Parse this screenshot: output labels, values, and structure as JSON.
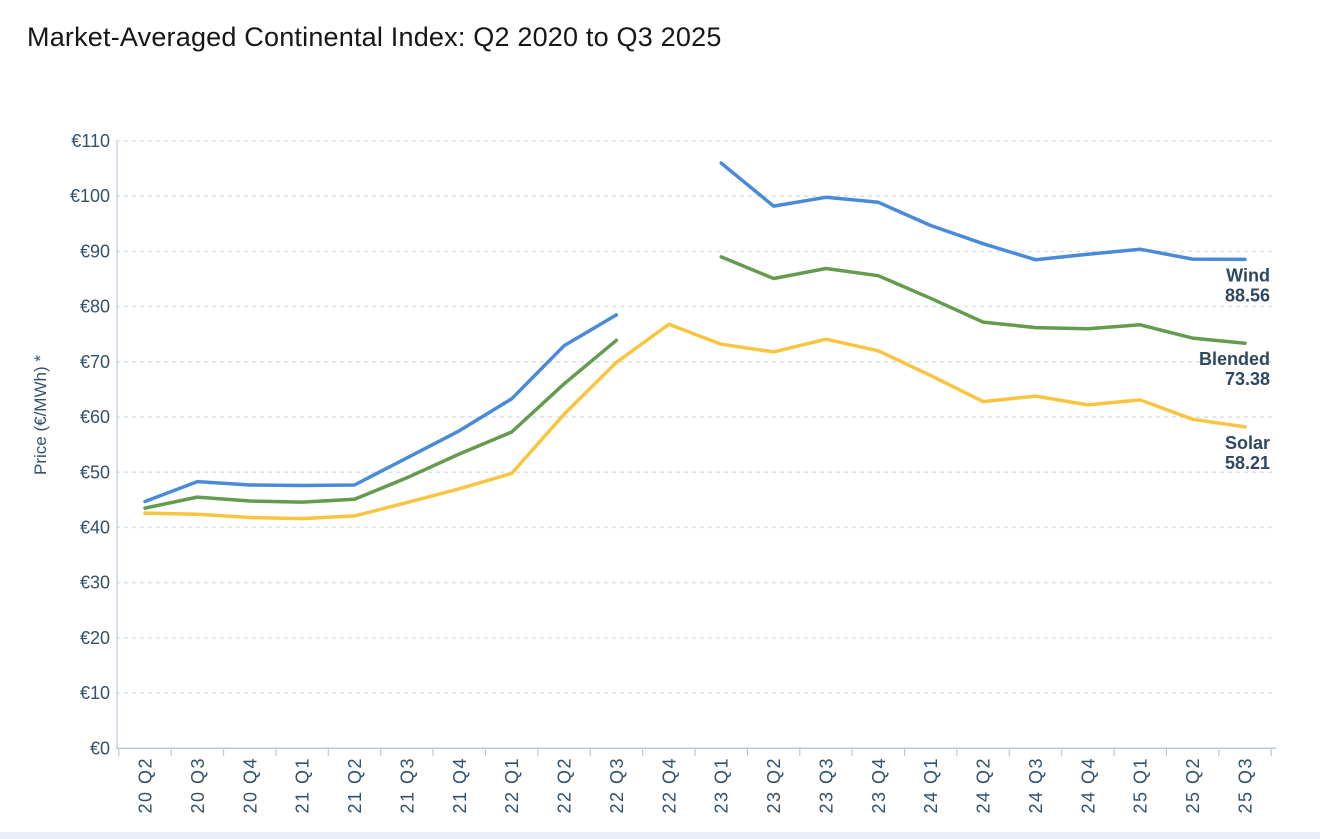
{
  "page": {
    "title": "Market-Averaged Continental Index: Q2 2020 to Q3 2025"
  },
  "chart_data": {
    "type": "line",
    "title": "Market-Averaged Continental Index: Q2 2020 to Q3 2025",
    "xlabel": "",
    "ylabel": "Price (€/MWh) *",
    "ylim": [
      0,
      110
    ],
    "y_tick_step": 10,
    "currency_prefix": "€",
    "grid": "horizontal-dashed",
    "legend_position": "end-of-line-labels-right",
    "categories": [
      "20 Q2",
      "20 Q3",
      "20 Q4",
      "21 Q1",
      "21 Q2",
      "21 Q3",
      "21 Q4",
      "22 Q1",
      "22 Q2",
      "22 Q3",
      "22 Q4",
      "23 Q1",
      "23 Q2",
      "23 Q3",
      "23 Q4",
      "24 Q1",
      "24 Q2",
      "24 Q3",
      "24 Q4",
      "25 Q1",
      "25 Q2",
      "25 Q3"
    ],
    "y_ticks": [
      {
        "v": 0,
        "label": "€0"
      },
      {
        "v": 10,
        "label": "€10"
      },
      {
        "v": 20,
        "label": "€20"
      },
      {
        "v": 30,
        "label": "€30"
      },
      {
        "v": 40,
        "label": "€40"
      },
      {
        "v": 50,
        "label": "€50"
      },
      {
        "v": 60,
        "label": "€60"
      },
      {
        "v": 70,
        "label": "€70"
      },
      {
        "v": 80,
        "label": "€80"
      },
      {
        "v": 90,
        "label": "€90"
      },
      {
        "v": 100,
        "label": "€100"
      },
      {
        "v": 110,
        "label": "€110"
      }
    ],
    "series": [
      {
        "name": "Wind",
        "color": "#4a8bd9",
        "end_label": "Wind",
        "end_value": "88.56",
        "values": [
          44.7,
          48.3,
          47.7,
          47.6,
          47.7,
          52.6,
          57.5,
          63.3,
          72.9,
          78.5,
          null,
          106.0,
          98.2,
          99.8,
          98.9,
          94.7,
          91.4,
          88.5,
          89.5,
          90.4,
          88.6,
          88.56
        ]
      },
      {
        "name": "Blended",
        "color": "#649b4e",
        "end_label": "Blended",
        "end_value": "73.38",
        "values": [
          43.5,
          45.5,
          44.8,
          44.6,
          45.1,
          49.0,
          53.3,
          57.3,
          66.0,
          73.9,
          null,
          89.0,
          85.1,
          86.9,
          85.6,
          81.5,
          77.2,
          76.2,
          76.0,
          76.7,
          74.3,
          73.38
        ]
      },
      {
        "name": "Solar",
        "color": "#f9c440",
        "end_label": "Solar",
        "end_value": "58.21",
        "values": [
          42.6,
          42.4,
          41.8,
          41.6,
          42.1,
          44.5,
          47.0,
          49.8,
          60.5,
          69.9,
          76.8,
          73.2,
          71.8,
          74.1,
          72.0,
          67.5,
          62.8,
          63.8,
          62.2,
          63.1,
          59.6,
          58.21
        ]
      }
    ]
  },
  "colors": {
    "title_text": "#161616",
    "axis_text": "#33516b",
    "end_label_text": "#2d4860",
    "grid_line": "#dbe2ee",
    "axis_line": "#b9cade",
    "footer_strip": "#e9eff8"
  }
}
